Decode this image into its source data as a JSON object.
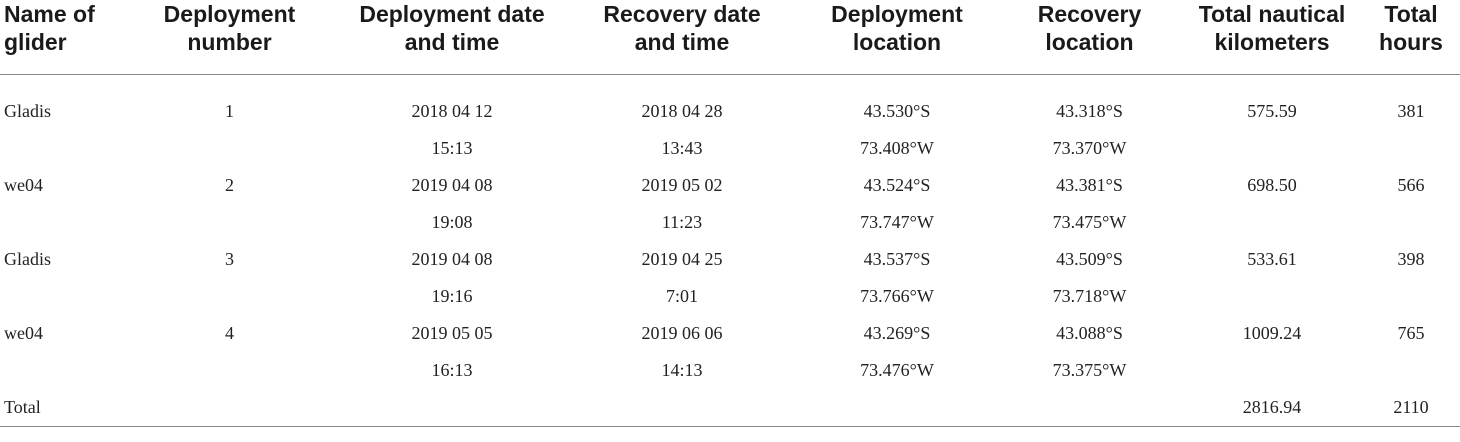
{
  "table": {
    "headers": [
      [
        "Name of",
        "glider"
      ],
      [
        "Deployment",
        "number"
      ],
      [
        "Deployment date",
        "and time"
      ],
      [
        "Recovery date",
        "and time"
      ],
      [
        "Deployment",
        "location"
      ],
      [
        "Recovery",
        "location"
      ],
      [
        "Total nautical",
        "kilometers"
      ],
      [
        "Total",
        "hours"
      ]
    ],
    "rows": [
      [
        "Gladis",
        "1",
        "2018 04 12",
        "2018 04 28",
        "43.530°S",
        "43.318°S",
        "575.59",
        "381"
      ],
      [
        "",
        "",
        "15:13",
        "13:43",
        "73.408°W",
        "73.370°W",
        "",
        ""
      ],
      [
        "we04",
        "2",
        "2019 04 08",
        "2019 05 02",
        "43.524°S",
        "43.381°S",
        "698.50",
        "566"
      ],
      [
        "",
        "",
        "19:08",
        "11:23",
        "73.747°W",
        "73.475°W",
        "",
        ""
      ],
      [
        "Gladis",
        "3",
        "2019 04 08",
        "2019 04 25",
        "43.537°S",
        "43.509°S",
        "533.61",
        "398"
      ],
      [
        "",
        "",
        "19:16",
        "7:01",
        "73.766°W",
        "73.718°W",
        "",
        ""
      ],
      [
        "we04",
        "4",
        "2019 05 05",
        "2019 06 06",
        "43.269°S",
        "43.088°S",
        "1009.24",
        "765"
      ],
      [
        "",
        "",
        "16:13",
        "14:13",
        "73.476°W",
        "73.375°W",
        "",
        ""
      ],
      [
        "Total",
        "",
        "",
        "",
        "",
        "",
        "2816.94",
        "2110"
      ]
    ]
  }
}
